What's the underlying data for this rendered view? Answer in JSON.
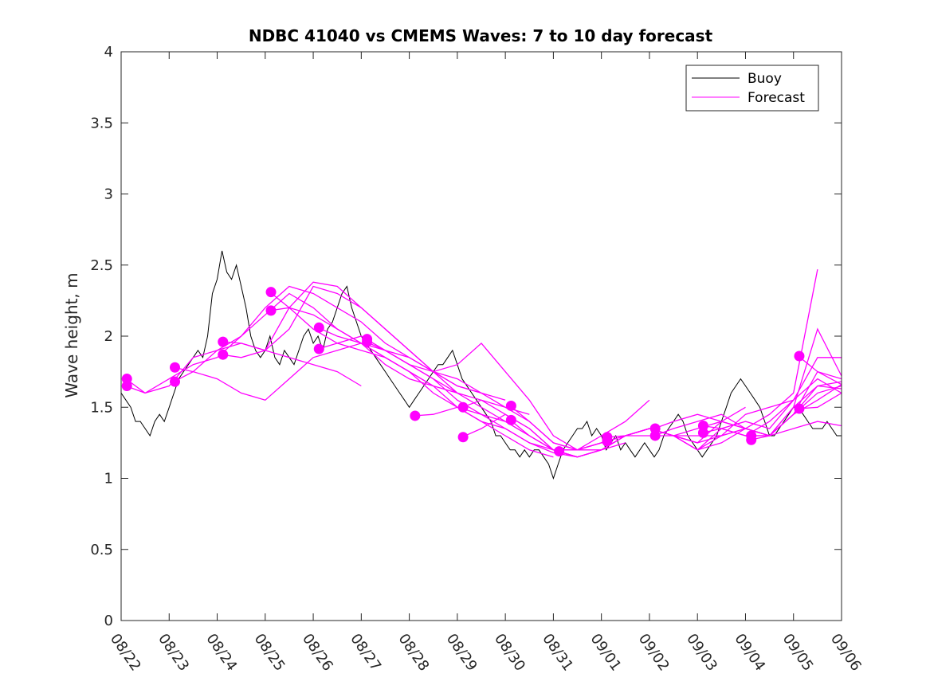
{
  "chart_data": {
    "type": "line",
    "title": "NDBC 41040 vs CMEMS Waves: 7 to 10 day forecast",
    "xlabel": "",
    "ylabel": "Wave height, m",
    "xlim": [
      0,
      15
    ],
    "ylim": [
      0,
      4
    ],
    "x_ticks": [
      0,
      1,
      2,
      3,
      4,
      5,
      6,
      7,
      8,
      9,
      10,
      11,
      12,
      13,
      14,
      15
    ],
    "x_tick_labels": [
      "08/22",
      "08/23",
      "08/24",
      "08/25",
      "08/26",
      "08/27",
      "08/28",
      "08/29",
      "08/30",
      "08/31",
      "09/01",
      "09/02",
      "09/03",
      "09/04",
      "09/05",
      "09/06"
    ],
    "y_ticks": [
      0,
      0.5,
      1,
      1.5,
      2,
      2.5,
      3,
      3.5,
      4
    ],
    "y_tick_labels": [
      "0",
      "0.5",
      "1",
      "1.5",
      "2",
      "2.5",
      "3",
      "3.5",
      "4"
    ],
    "legend": {
      "position": "top-right",
      "entries": [
        "Buoy",
        "Forecast"
      ]
    },
    "colors": {
      "buoy": "#000000",
      "forecast": "#ff00ff"
    },
    "buoy_series": {
      "name": "Buoy",
      "x": [
        0,
        0.1,
        0.2,
        0.3,
        0.4,
        0.5,
        0.6,
        0.7,
        0.8,
        0.9,
        1.0,
        1.1,
        1.2,
        1.3,
        1.4,
        1.5,
        1.6,
        1.7,
        1.8,
        1.9,
        2.0,
        2.1,
        2.2,
        2.3,
        2.4,
        2.5,
        2.6,
        2.7,
        2.8,
        2.9,
        3.0,
        3.1,
        3.2,
        3.3,
        3.4,
        3.5,
        3.6,
        3.7,
        3.8,
        3.9,
        4.0,
        4.1,
        4.2,
        4.3,
        4.4,
        4.5,
        4.6,
        4.7,
        4.8,
        4.9,
        5.0,
        5.1,
        5.2,
        5.3,
        5.4,
        5.5,
        5.6,
        5.7,
        5.8,
        5.9,
        6.0,
        6.1,
        6.2,
        6.3,
        6.4,
        6.5,
        6.6,
        6.7,
        6.8,
        6.9,
        7.0,
        7.1,
        7.2,
        7.3,
        7.4,
        7.5,
        7.6,
        7.7,
        7.8,
        7.9,
        8.0,
        8.1,
        8.2,
        8.3,
        8.4,
        8.5,
        8.6,
        8.7,
        8.8,
        8.9,
        9.0,
        9.1,
        9.2,
        9.3,
        9.4,
        9.5,
        9.6,
        9.7,
        9.8,
        9.9,
        10.0,
        10.1,
        10.2,
        10.3,
        10.4,
        10.5,
        10.6,
        10.7,
        10.8,
        10.9,
        11.0,
        11.1,
        11.2,
        11.3,
        11.4,
        11.5,
        11.6,
        11.7,
        11.8,
        11.9,
        12.0,
        12.1,
        12.2,
        12.3,
        12.4,
        12.5,
        12.6,
        12.7,
        12.8,
        12.9,
        13.0,
        13.1,
        13.2,
        13.3,
        13.4,
        13.5,
        13.6,
        13.7,
        13.8,
        13.9,
        14.0,
        14.1,
        14.2,
        14.3,
        14.4,
        14.5,
        14.6,
        14.7,
        14.8,
        14.9,
        15.0
      ],
      "y": [
        1.6,
        1.55,
        1.5,
        1.4,
        1.4,
        1.35,
        1.3,
        1.4,
        1.45,
        1.4,
        1.5,
        1.6,
        1.7,
        1.75,
        1.8,
        1.85,
        1.9,
        1.85,
        2.0,
        2.3,
        2.4,
        2.6,
        2.45,
        2.4,
        2.5,
        2.35,
        2.2,
        2.0,
        1.9,
        1.85,
        1.9,
        2.0,
        1.85,
        1.8,
        1.9,
        1.85,
        1.8,
        1.9,
        2.0,
        2.05,
        1.95,
        2.0,
        1.9,
        2.05,
        2.1,
        2.2,
        2.3,
        2.35,
        2.2,
        2.1,
        2.0,
        1.95,
        1.9,
        1.85,
        1.8,
        1.75,
        1.7,
        1.65,
        1.6,
        1.55,
        1.5,
        1.55,
        1.6,
        1.65,
        1.7,
        1.75,
        1.8,
        1.8,
        1.85,
        1.9,
        1.8,
        1.7,
        1.65,
        1.6,
        1.55,
        1.5,
        1.45,
        1.4,
        1.3,
        1.3,
        1.25,
        1.2,
        1.2,
        1.15,
        1.2,
        1.15,
        1.2,
        1.2,
        1.15,
        1.1,
        1.0,
        1.1,
        1.2,
        1.25,
        1.3,
        1.35,
        1.35,
        1.4,
        1.3,
        1.35,
        1.3,
        1.2,
        1.25,
        1.3,
        1.2,
        1.25,
        1.2,
        1.15,
        1.2,
        1.25,
        1.2,
        1.15,
        1.2,
        1.3,
        1.35,
        1.4,
        1.45,
        1.4,
        1.3,
        1.25,
        1.2,
        1.15,
        1.2,
        1.25,
        1.3,
        1.4,
        1.5,
        1.6,
        1.65,
        1.7,
        1.65,
        1.6,
        1.55,
        1.5,
        1.4,
        1.3,
        1.3,
        1.35,
        1.4,
        1.45,
        1.5,
        1.5,
        1.45,
        1.4,
        1.35,
        1.35,
        1.35,
        1.4,
        1.35,
        1.3,
        1.3
      ]
    },
    "forecast_series": [
      {
        "name": "Forecast",
        "x": [
          0.1,
          0.5,
          1.0,
          1.5,
          2.0,
          2.5,
          3.0,
          3.5,
          4.0,
          4.5,
          5.0
        ],
        "y": [
          1.7,
          1.6,
          1.65,
          1.85,
          1.9,
          1.95,
          1.9,
          1.85,
          1.8,
          1.75,
          1.65
        ]
      },
      {
        "name": "Forecast",
        "x": [
          0.1,
          0.5,
          1.0,
          1.5,
          2.0,
          2.5,
          3.0,
          3.5,
          4.0,
          4.5,
          5.0,
          5.5,
          6.0,
          6.5
        ],
        "y": [
          1.65,
          1.6,
          1.7,
          1.8,
          1.85,
          2.0,
          2.15,
          2.3,
          2.2,
          2.05,
          1.95,
          1.8,
          1.7,
          1.65
        ]
      },
      {
        "name": "Forecast",
        "x": [
          1.1,
          1.5,
          2.0,
          2.5,
          3.0,
          3.5,
          4.0,
          4.5,
          5.0,
          5.5,
          6.0,
          6.5,
          7.0
        ],
        "y": [
          1.78,
          1.75,
          1.7,
          1.6,
          1.55,
          1.7,
          1.85,
          1.9,
          1.95,
          1.85,
          1.75,
          1.65,
          1.6
        ]
      },
      {
        "name": "Forecast",
        "x": [
          1.1,
          1.5,
          2.0,
          2.5,
          3.0,
          3.5,
          4.0,
          4.5,
          5.0,
          5.5,
          6.0,
          6.5,
          7.0,
          7.5
        ],
        "y": [
          1.68,
          1.75,
          1.9,
          2.0,
          2.2,
          2.35,
          2.3,
          2.2,
          2.1,
          1.95,
          1.85,
          1.75,
          1.65,
          1.6
        ]
      },
      {
        "name": "Forecast",
        "x": [
          2.1,
          2.5,
          3.0,
          3.5,
          4.0,
          4.5,
          5.0,
          5.5,
          6.0,
          6.5,
          7.0,
          7.5,
          8.0
        ],
        "y": [
          1.96,
          1.95,
          1.9,
          2.05,
          2.35,
          2.3,
          2.2,
          2.05,
          1.9,
          1.75,
          1.65,
          1.6,
          1.55
        ]
      },
      {
        "name": "Forecast",
        "x": [
          2.1,
          2.5,
          3.0,
          3.5,
          4.0,
          4.5,
          5.0,
          5.5,
          6.0,
          6.5,
          7.0,
          7.5,
          8.0,
          8.5
        ],
        "y": [
          1.87,
          1.85,
          1.9,
          2.2,
          2.38,
          2.35,
          2.2,
          2.05,
          1.9,
          1.75,
          1.7,
          1.6,
          1.5,
          1.45
        ]
      },
      {
        "name": "Forecast",
        "x": [
          3.1,
          3.5,
          4.0,
          4.5,
          5.0,
          5.5,
          6.0,
          6.5,
          7.0,
          7.5,
          8.0,
          8.5,
          9.0
        ],
        "y": [
          2.31,
          2.2,
          2.05,
          1.95,
          1.9,
          1.85,
          1.75,
          1.65,
          1.5,
          1.4,
          1.3,
          1.2,
          1.15
        ]
      },
      {
        "name": "Forecast",
        "x": [
          3.1,
          3.5,
          4.0,
          4.5,
          5.0,
          5.5,
          6.0,
          6.5,
          7.0,
          7.5,
          8.0,
          8.5,
          9.0,
          9.5
        ],
        "y": [
          2.18,
          2.2,
          2.15,
          2.05,
          1.95,
          1.9,
          1.8,
          1.7,
          1.55,
          1.45,
          1.35,
          1.25,
          1.2,
          1.15
        ]
      },
      {
        "name": "Forecast",
        "x": [
          4.1,
          4.5,
          5.0,
          5.5,
          6.0,
          6.5,
          7.0,
          7.5,
          8.0,
          8.5,
          9.0,
          9.5,
          10.0
        ],
        "y": [
          2.06,
          2.0,
          1.95,
          1.85,
          1.75,
          1.6,
          1.5,
          1.4,
          1.35,
          1.25,
          1.18,
          1.15,
          1.2
        ]
      },
      {
        "name": "Forecast",
        "x": [
          4.1,
          4.5,
          5.0,
          5.5,
          6.0,
          6.5,
          7.0,
          7.5,
          8.0,
          8.5,
          9.0,
          9.5,
          10.0,
          10.5
        ],
        "y": [
          1.91,
          1.95,
          2.0,
          1.9,
          1.8,
          1.7,
          1.6,
          1.5,
          1.4,
          1.3,
          1.2,
          1.15,
          1.2,
          1.25
        ]
      },
      {
        "name": "Forecast",
        "x": [
          5.1,
          5.5,
          6.0,
          6.5,
          7.0,
          7.5,
          8.0,
          8.5,
          9.0,
          9.5,
          10.0,
          10.5,
          11.0
        ],
        "y": [
          1.98,
          1.9,
          1.85,
          1.75,
          1.6,
          1.55,
          1.45,
          1.35,
          1.2,
          1.2,
          1.3,
          1.4,
          1.55
        ]
      },
      {
        "name": "Forecast",
        "x": [
          5.1,
          5.5,
          6.0,
          6.5,
          7.0,
          7.5,
          8.0,
          8.5,
          9.0,
          9.5,
          10.0,
          10.5,
          11.0,
          11.5
        ],
        "y": [
          1.96,
          1.9,
          1.8,
          1.75,
          1.8,
          1.95,
          1.75,
          1.55,
          1.3,
          1.2,
          1.25,
          1.3,
          1.35,
          1.3
        ]
      },
      {
        "name": "Forecast",
        "x": [
          6.1,
          6.5,
          7.0,
          7.5,
          8.0,
          8.5,
          9.0,
          9.5,
          10.0,
          10.5,
          11.0,
          11.5,
          12.0
        ],
        "y": [
          1.44,
          1.45,
          1.5,
          1.45,
          1.4,
          1.3,
          1.2,
          1.15,
          1.2,
          1.3,
          1.35,
          1.3,
          1.25
        ]
      },
      {
        "name": "Forecast",
        "x": [
          7.1,
          7.5,
          8.0,
          8.5,
          9.0,
          9.5,
          10.0,
          10.5,
          11.0,
          11.5,
          12.0,
          12.5,
          13.0
        ],
        "y": [
          1.5,
          1.55,
          1.5,
          1.4,
          1.25,
          1.2,
          1.25,
          1.3,
          1.35,
          1.3,
          1.25,
          1.4,
          1.5
        ]
      },
      {
        "name": "Forecast",
        "x": [
          7.1,
          7.5,
          8.0,
          8.5,
          9.0,
          9.5,
          10.0,
          10.5,
          11.0,
          11.5,
          12.0,
          12.5,
          13.0,
          13.5
        ],
        "y": [
          1.29,
          1.35,
          1.45,
          1.35,
          1.2,
          1.2,
          1.25,
          1.3,
          1.35,
          1.3,
          1.25,
          1.3,
          1.35,
          1.3
        ]
      },
      {
        "name": "Forecast",
        "x": [
          8.1,
          8.5,
          9.0,
          9.5,
          10.0,
          10.5,
          11.0,
          11.5,
          12.0,
          12.5,
          13.0,
          13.5,
          14.0
        ],
        "y": [
          1.51,
          1.4,
          1.25,
          1.2,
          1.2,
          1.3,
          1.35,
          1.3,
          1.2,
          1.3,
          1.45,
          1.5,
          1.55
        ]
      },
      {
        "name": "Forecast",
        "x": [
          8.1,
          8.5,
          9.0,
          9.5,
          10.0,
          10.5,
          11.0,
          11.5,
          12.0,
          12.5,
          13.0,
          13.5,
          14.0,
          14.5
        ],
        "y": [
          1.41,
          1.3,
          1.2,
          1.15,
          1.2,
          1.3,
          1.3,
          1.3,
          1.35,
          1.4,
          1.35,
          1.45,
          1.6,
          2.47
        ]
      },
      {
        "name": "Forecast",
        "x": [
          9.1,
          9.5,
          10.0,
          10.5,
          11.0,
          11.5,
          12.0,
          12.5,
          13.0,
          13.5,
          14.0,
          14.5,
          15.0
        ],
        "y": [
          1.19,
          1.15,
          1.2,
          1.3,
          1.35,
          1.3,
          1.2,
          1.35,
          1.4,
          1.35,
          1.55,
          1.7,
          1.6
        ]
      },
      {
        "name": "Forecast",
        "x": [
          10.1,
          10.5,
          11.0,
          11.5,
          12.0,
          12.5,
          13.0,
          13.5,
          14.0,
          14.5,
          15.0
        ],
        "y": [
          1.29,
          1.3,
          1.35,
          1.3,
          1.2,
          1.25,
          1.35,
          1.3,
          1.45,
          1.65,
          1.68
        ]
      },
      {
        "name": "Forecast",
        "x": [
          10.1,
          10.5,
          11.0,
          11.5,
          12.0,
          12.5,
          13.0,
          13.5,
          14.0,
          14.5,
          15.0
        ],
        "y": [
          1.26,
          1.3,
          1.35,
          1.3,
          1.3,
          1.3,
          1.35,
          1.3,
          1.35,
          1.4,
          1.37
        ]
      },
      {
        "name": "Forecast",
        "x": [
          11.1,
          11.5,
          12.0,
          12.5,
          13.0,
          13.5,
          14.0,
          14.5,
          15.0
        ],
        "y": [
          1.35,
          1.4,
          1.45,
          1.4,
          1.35,
          1.3,
          1.5,
          1.65,
          1.63
        ]
      },
      {
        "name": "Forecast",
        "x": [
          11.1,
          11.5,
          12.0,
          12.5,
          13.0,
          13.5,
          14.0,
          14.5,
          15.0
        ],
        "y": [
          1.3,
          1.35,
          1.4,
          1.45,
          1.35,
          1.3,
          1.45,
          1.75,
          1.66
        ]
      },
      {
        "name": "Forecast",
        "x": [
          12.1,
          12.5,
          13.0,
          13.5,
          14.0,
          14.5,
          15.0
        ],
        "y": [
          1.37,
          1.35,
          1.3,
          1.4,
          1.55,
          1.85,
          1.85
        ]
      },
      {
        "name": "Forecast",
        "x": [
          12.1,
          12.5,
          13.0,
          13.5,
          14.0,
          14.5,
          15.0
        ],
        "y": [
          1.32,
          1.35,
          1.3,
          1.3,
          1.45,
          1.55,
          1.66
        ]
      },
      {
        "name": "Forecast",
        "x": [
          13.1,
          13.5,
          14.0,
          14.5,
          15.0
        ],
        "y": [
          1.3,
          1.3,
          1.5,
          2.05,
          1.72
        ]
      },
      {
        "name": "Forecast",
        "x": [
          13.1,
          13.5,
          14.0,
          14.5,
          15.0
        ],
        "y": [
          1.27,
          1.3,
          1.45,
          1.6,
          1.65
        ]
      },
      {
        "name": "Forecast",
        "x": [
          14.1,
          14.5,
          15.0
        ],
        "y": [
          1.86,
          1.75,
          1.7
        ]
      },
      {
        "name": "Forecast",
        "x": [
          14.1,
          14.5,
          15.0
        ],
        "y": [
          1.49,
          1.5,
          1.6
        ]
      }
    ],
    "forecast_markers": {
      "x": [
        0.12,
        0.12,
        1.12,
        1.12,
        2.12,
        2.12,
        3.12,
        3.12,
        4.12,
        4.12,
        5.12,
        5.12,
        6.12,
        7.12,
        7.12,
        8.12,
        8.12,
        9.12,
        10.12,
        10.12,
        11.12,
        11.12,
        12.12,
        12.12,
        13.12,
        13.12,
        14.12,
        14.12
      ],
      "y": [
        1.7,
        1.65,
        1.78,
        1.68,
        1.96,
        1.87,
        2.31,
        2.18,
        2.06,
        1.91,
        1.98,
        1.96,
        1.44,
        1.5,
        1.29,
        1.51,
        1.41,
        1.19,
        1.29,
        1.26,
        1.35,
        1.3,
        1.37,
        1.32,
        1.3,
        1.27,
        1.86,
        1.49
      ]
    }
  }
}
